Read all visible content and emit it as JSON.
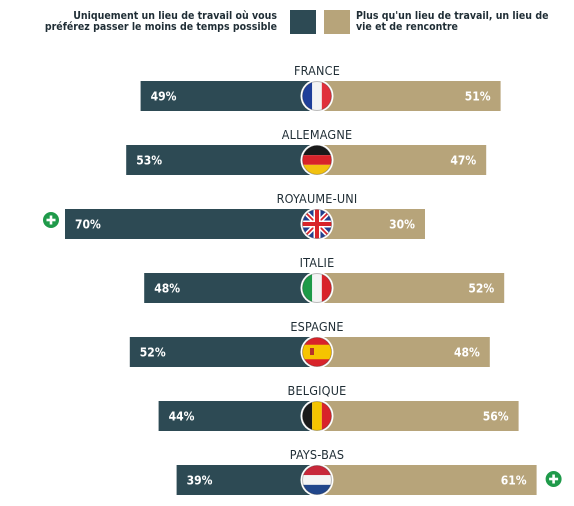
{
  "colors": {
    "left": "#2d4a54",
    "right": "#b7a47a",
    "plus": "#1f9a4a",
    "label": "#1f2d35"
  },
  "legend": {
    "left": "Uniquement un lieu de travail où vous préférez passer le moins de temps possible",
    "right": "Plus qu'un lieu de travail, un lieu de vie et de rencontre"
  },
  "chart_data": {
    "type": "bar",
    "orientation": "horizontal-diverging",
    "unit": "%",
    "categories": [
      "FRANCE",
      "ALLEMAGNE",
      "ROYAUME-UNI",
      "ITALIE",
      "ESPAGNE",
      "BELGIQUE",
      "PAYS-BAS"
    ],
    "series": [
      {
        "name": "Uniquement un lieu de travail où vous préférez passer le moins de temps possible",
        "values": [
          49,
          53,
          70,
          48,
          52,
          44,
          39
        ]
      },
      {
        "name": "Plus qu'un lieu de travail, un lieu de vie et de rencontre",
        "values": [
          51,
          47,
          30,
          52,
          48,
          56,
          61
        ]
      }
    ],
    "highlight": [
      {
        "category": "ROYAUME-UNI",
        "side": "left",
        "icon": "plus-icon"
      },
      {
        "category": "PAYS-BAS",
        "side": "right",
        "icon": "plus-icon"
      }
    ],
    "flags": [
      "france-flag-icon",
      "germany-flag-icon",
      "uk-flag-icon",
      "italy-flag-icon",
      "spain-flag-icon",
      "belgium-flag-icon",
      "netherlands-flag-icon"
    ]
  }
}
